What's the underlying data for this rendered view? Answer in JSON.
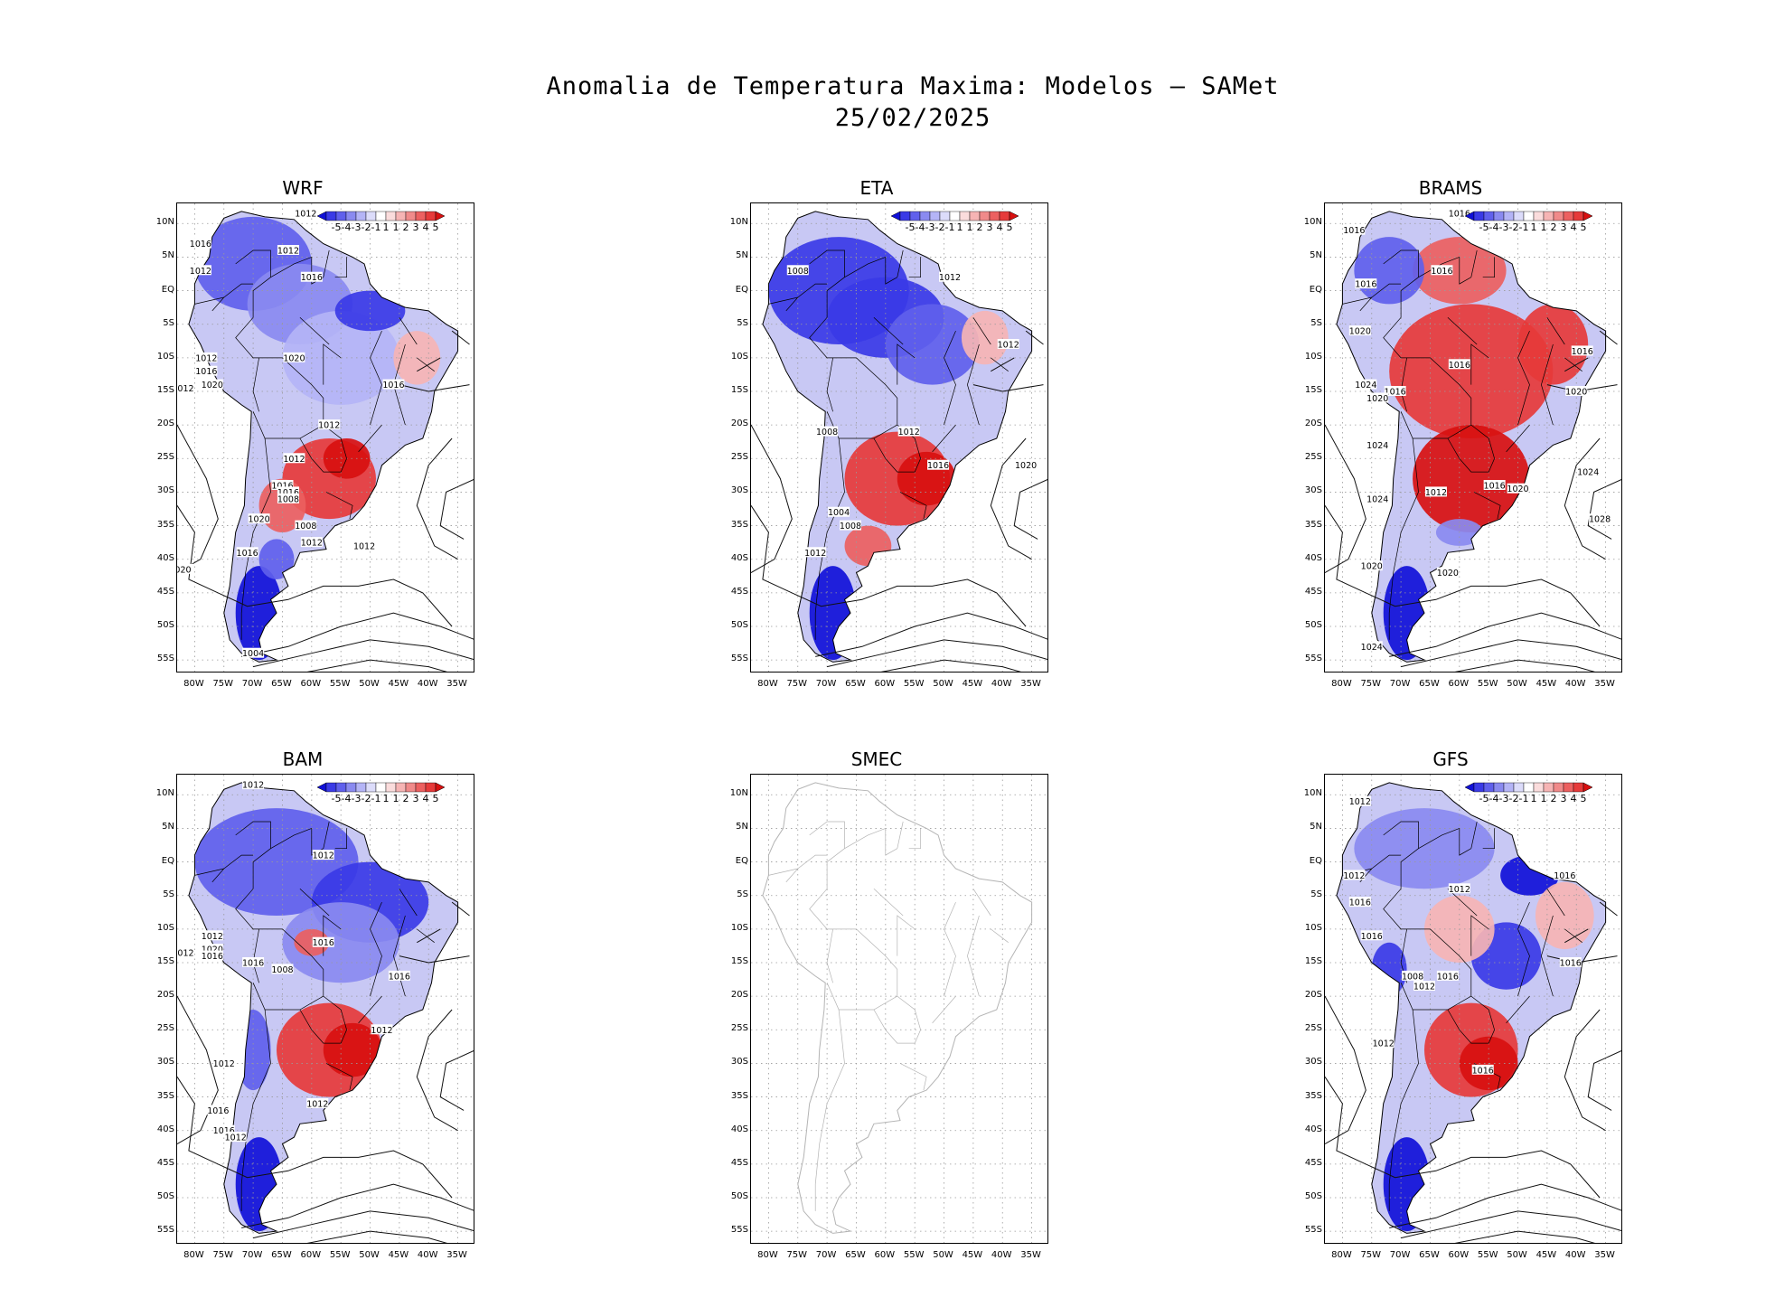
{
  "title": {
    "line1": "Anomalia de Temperatura Maxima: Modelos — SAMet",
    "line2": "25/02/2025"
  },
  "axes": {
    "lat_labels": [
      "10N",
      "5N",
      "EQ",
      "5S",
      "10S",
      "15S",
      "20S",
      "25S",
      "30S",
      "35S",
      "40S",
      "45S",
      "50S",
      "55S"
    ],
    "lon_labels": [
      "80W",
      "75W",
      "70W",
      "65W",
      "60W",
      "55W",
      "50W",
      "45W",
      "40W",
      "35W"
    ]
  },
  "colorbar": {
    "tick_labels": [
      "-5",
      "-4",
      "-3",
      "-2",
      "-1",
      "1",
      "1",
      "2",
      "3",
      "4",
      "5"
    ],
    "colors": [
      "#1010d8",
      "#3a3ae6",
      "#6060ec",
      "#8a8af0",
      "#b4b4f6",
      "#dcdcfa",
      "#ffffff",
      "#fadcdc",
      "#f6b4b4",
      "#f08a8a",
      "#ec6060",
      "#e63a3a",
      "#d81010"
    ]
  },
  "panels": [
    {
      "id": "wrf",
      "name": "WRF",
      "has_data": true,
      "colorbar": true,
      "isobars": [
        "1012",
        "1016",
        "1012",
        "1012",
        "1016",
        "1012",
        "1020",
        "1016",
        "1020",
        "1012",
        "1012",
        "1012",
        "1016",
        "1016",
        "1008",
        "1020",
        "1008",
        "1012",
        "1012",
        "1016",
        "020",
        "1016",
        "1004"
      ]
    },
    {
      "id": "eta",
      "name": "ETA",
      "has_data": true,
      "colorbar": true,
      "isobars": [
        "1008",
        "1012",
        "1012",
        "1008",
        "1012",
        "1016",
        "1020",
        "1004",
        "1008",
        "1012"
      ]
    },
    {
      "id": "brams",
      "name": "BRAMS",
      "has_data": true,
      "colorbar": true,
      "isobars": [
        "1016",
        "1016",
        "1016",
        "1016",
        "1020",
        "1016",
        "1016",
        "1024",
        "1016",
        "1020",
        "1020",
        "1024",
        "1024",
        "1012",
        "1016",
        "1020",
        "1024",
        "1028",
        "1020",
        "1020",
        "1024"
      ]
    },
    {
      "id": "bam",
      "name": "BAM",
      "has_data": true,
      "colorbar": true,
      "isobars": [
        "1012",
        "1012",
        "1012",
        "1012",
        "1020",
        "1016",
        "1016",
        "1008",
        "1016",
        "1016",
        "1012",
        "1012",
        "1012",
        "1016",
        "1016",
        "1012"
      ]
    },
    {
      "id": "smec",
      "name": "SMEC",
      "has_data": false,
      "colorbar": false,
      "isobars": []
    },
    {
      "id": "gfs",
      "name": "GFS",
      "has_data": true,
      "colorbar": true,
      "isobars": [
        "1012",
        "1016",
        "1012",
        "1012",
        "1016",
        "1016",
        "1016",
        "1008",
        "1012",
        "1016",
        "1012",
        "1016"
      ]
    }
  ]
}
